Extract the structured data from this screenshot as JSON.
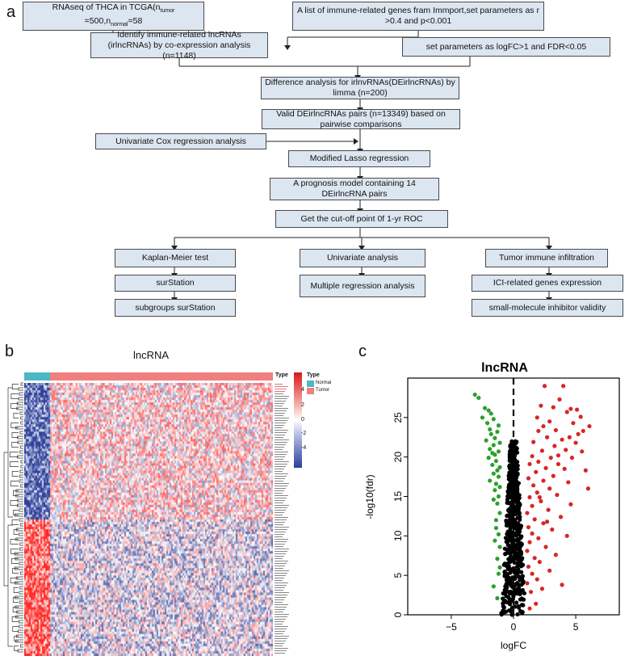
{
  "panels": {
    "a": "a",
    "b": "b",
    "c": "c"
  },
  "flow": {
    "rnaseq_main": "RNAseq of THCA in TCGA(n",
    "rnaseq_tumor_sub": "tumor",
    "rnaseq_mid": "=500,n",
    "rnaseq_normal_sub": "normal",
    "rnaseq_end": "=58",
    "immune_genes": "A list of immune-related genes fram Immport,set parameters as r >0.4 and p<0.001",
    "identify": "Identify immune-related lncRNAs (irlncRNAs) by co-expression analysis (n=1148)",
    "set_params": "set parameters as logFC>1 and FDR<0.05",
    "difference": "Difference analysis for irlnvRNAs(DEirlncRNAs) by limma (n=200)",
    "valid_pairs": "Valid DEirlncRNAs pairs (n=13349) based on pairwise comparisons",
    "univariate_cox": "Univariate Cox regression analysis",
    "lasso": "Modified Lasso regression",
    "prognosis": "A prognosis model containing 14 DEirlncRNA pairs",
    "cutoff": "Get the cut-off point  0f 1-yr ROC",
    "km": "Kaplan-Meier test",
    "univariate": "Univariate analysis",
    "tumor_immune": "Tumor immune infiltration",
    "surstation": "surStation",
    "multiple": "Multiple regression analysis",
    "ici": "ICI-related genes expression",
    "subgroups": "subgroups surStation",
    "small_molecule": "small-molecule inhibitor validity"
  },
  "heatmap": {
    "title": "lncRNA",
    "type_label": "Type",
    "legend_title": "Type",
    "legend_items": [
      "Normal",
      "Tumor"
    ],
    "scale_ticks": [
      "4",
      "2",
      "0",
      "-2",
      "-4"
    ],
    "colors": {
      "normal": "#4cb8c4",
      "tumor": "#f08080",
      "high": "#d7191c",
      "low": "#2c3f99",
      "mid": "#ffffff"
    }
  },
  "chart_data": {
    "type": "scatter",
    "title": "lncRNA",
    "xlabel": "logFC",
    "ylabel": "-log10(fdr)",
    "xlim": [
      -8.5,
      8.5
    ],
    "ylim": [
      0,
      30
    ],
    "xticks": [
      -5,
      0,
      5
    ],
    "yticks": [
      0,
      5,
      10,
      15,
      20,
      25
    ],
    "threshold_x": 0,
    "series": [
      {
        "color": "#2ca02c",
        "points": [
          [
            -3.1,
            27.9
          ],
          [
            -2.8,
            27.5
          ],
          [
            -2.3,
            26.2
          ],
          [
            -2.0,
            25.9
          ],
          [
            -1.8,
            25.5
          ],
          [
            -2.5,
            25.0
          ],
          [
            -1.6,
            24.8
          ],
          [
            -2.1,
            24.3
          ],
          [
            -1.9,
            23.5
          ],
          [
            -1.3,
            23.2
          ],
          [
            -1.8,
            22.9
          ],
          [
            -1.5,
            22.4
          ],
          [
            -2.2,
            22.1
          ],
          [
            -1.1,
            21.8
          ],
          [
            -1.6,
            21.5
          ],
          [
            -1.9,
            21.0
          ],
          [
            -1.2,
            20.7
          ],
          [
            -1.5,
            20.3
          ],
          [
            -2.0,
            19.9
          ],
          [
            -1.4,
            19.5
          ],
          [
            -1.7,
            19.0
          ],
          [
            -1.1,
            18.7
          ],
          [
            -1.3,
            18.3
          ],
          [
            -1.6,
            17.9
          ],
          [
            -1.2,
            17.5
          ],
          [
            -1.9,
            17.0
          ],
          [
            -1.4,
            16.6
          ],
          [
            -1.1,
            16.2
          ],
          [
            -1.5,
            15.8
          ],
          [
            -1.2,
            15.0
          ],
          [
            -1.6,
            14.6
          ],
          [
            -1.3,
            14.1
          ],
          [
            -1.1,
            12.9
          ],
          [
            -1.4,
            12.0
          ],
          [
            -1.2,
            10.2
          ],
          [
            -1.5,
            9.4
          ],
          [
            -1.1,
            8.6
          ],
          [
            -1.3,
            7.1
          ],
          [
            -1.2,
            5.2
          ],
          [
            -1.6,
            3.6
          ],
          [
            -1.3,
            2.1
          ],
          [
            -1.1,
            6.0
          ],
          [
            -1.4,
            11.0
          ],
          [
            -1.7,
            20.5
          ],
          [
            -1.2,
            24.0
          ]
        ]
      },
      {
        "color": "#d62728",
        "points": [
          [
            2.5,
            29.0
          ],
          [
            4.0,
            29.0
          ],
          [
            3.7,
            27.3
          ],
          [
            4.6,
            26.1
          ],
          [
            5.1,
            26.0
          ],
          [
            3.2,
            26.3
          ],
          [
            4.3,
            25.7
          ],
          [
            5.4,
            25.1
          ],
          [
            2.2,
            26.5
          ],
          [
            6.1,
            23.9
          ],
          [
            2.9,
            24.5
          ],
          [
            4.8,
            24.3
          ],
          [
            5.6,
            23.3
          ],
          [
            3.4,
            23.4
          ],
          [
            2.0,
            23.3
          ],
          [
            4.5,
            22.5
          ],
          [
            3.9,
            22.2
          ],
          [
            2.7,
            22.5
          ],
          [
            5.0,
            21.8
          ],
          [
            1.6,
            21.9
          ],
          [
            3.3,
            21.4
          ],
          [
            4.2,
            20.9
          ],
          [
            5.5,
            20.7
          ],
          [
            2.3,
            20.8
          ],
          [
            1.5,
            20.1
          ],
          [
            3.0,
            19.9
          ],
          [
            4.7,
            19.9
          ],
          [
            2.0,
            19.4
          ],
          [
            3.6,
            19.1
          ],
          [
            1.3,
            19.1
          ],
          [
            2.6,
            18.6
          ],
          [
            4.1,
            18.5
          ],
          [
            5.8,
            18.3
          ],
          [
            1.8,
            18.1
          ],
          [
            3.2,
            17.6
          ],
          [
            1.2,
            17.3
          ],
          [
            2.4,
            17.0
          ],
          [
            4.4,
            16.8
          ],
          [
            1.6,
            16.4
          ],
          [
            6.0,
            16.0
          ],
          [
            2.9,
            16.0
          ],
          [
            1.9,
            15.5
          ],
          [
            3.5,
            15.2
          ],
          [
            1.3,
            14.9
          ],
          [
            2.2,
            14.4
          ],
          [
            4.6,
            14.0
          ],
          [
            1.5,
            13.8
          ],
          [
            2.8,
            13.3
          ],
          [
            1.1,
            12.9
          ],
          [
            3.8,
            12.4
          ],
          [
            1.7,
            12.1
          ],
          [
            2.4,
            11.6
          ],
          [
            1.2,
            11.1
          ],
          [
            3.1,
            10.8
          ],
          [
            1.5,
            10.3
          ],
          [
            4.3,
            10.0
          ],
          [
            2.0,
            9.7
          ],
          [
            1.3,
            9.2
          ],
          [
            2.6,
            8.6
          ],
          [
            1.1,
            8.1
          ],
          [
            3.4,
            7.6
          ],
          [
            1.7,
            7.2
          ],
          [
            2.1,
            6.7
          ],
          [
            1.2,
            6.1
          ],
          [
            2.9,
            5.6
          ],
          [
            1.5,
            5.2
          ],
          [
            3.9,
            3.8
          ],
          [
            1.9,
            4.5
          ],
          [
            1.1,
            4.0
          ],
          [
            2.3,
            3.3
          ],
          [
            1.4,
            2.9
          ],
          [
            1.8,
            1.4
          ],
          [
            1.3,
            0.8
          ],
          [
            2.7,
            11.8
          ],
          [
            3.6,
            20.2
          ],
          [
            2.4,
            23.9
          ],
          [
            5.2,
            22.9
          ],
          [
            1.9,
            25.0
          ],
          [
            2.1,
            14.9
          ]
        ]
      }
    ]
  }
}
